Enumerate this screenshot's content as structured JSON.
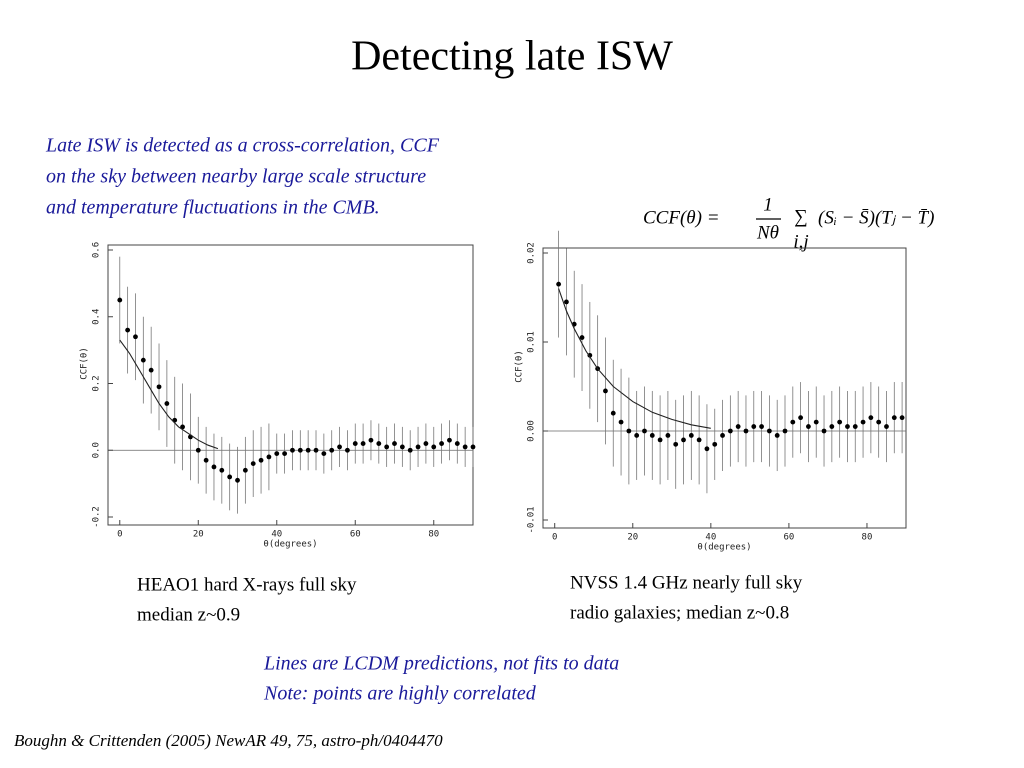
{
  "title": "Detecting late ISW",
  "intro": [
    "Late ISW is detected as a cross-correlation,  CCF",
    "on the sky between nearby large scale structure",
    "and temperature fluctuations in the CMB."
  ],
  "formula": {
    "lhs": "CCF(θ) =",
    "num": "1",
    "den": "Nθ",
    "sum": "∑",
    "sub": "i,j",
    "rhs": "(Sᵢ − S̄)(Tⱼ − T̄)"
  },
  "captions": [
    [
      "HEAO1 hard X-rays full sky",
      "median z~0.9"
    ],
    [
      "NVSS 1.4 GHz  nearly full sky",
      "radio galaxies; median z~0.8"
    ]
  ],
  "notes": [
    "Lines are LCDM predictions, not fits to data",
    "Note: points are highly correlated"
  ],
  "reference": "Boughn & Crittenden (2005) NewAR 49, 75, astro-ph/0404470",
  "chart_data": [
    {
      "type": "scatter",
      "xlabel": "θ(degrees)",
      "ylabel": "CCF(θ)",
      "xlim": [
        -3,
        90
      ],
      "xticks": [
        0,
        20,
        40,
        60,
        80
      ],
      "ylim": [
        -0.2,
        0.6
      ],
      "yticks": [
        -0.2,
        {
          "value": 0,
          "label": "0.0"
        },
        0.2,
        0.4,
        0.6
      ],
      "series": [
        {
          "color": "#000000",
          "x": [
            0,
            2,
            4,
            6,
            8,
            10,
            12,
            14,
            16,
            18,
            20,
            22,
            24,
            26,
            28,
            30,
            32,
            34,
            36,
            38,
            40,
            42,
            44,
            46,
            48,
            50,
            52,
            54,
            56,
            58,
            60,
            62,
            64,
            66,
            68,
            70,
            72,
            74,
            76,
            78,
            80,
            82,
            84,
            86,
            88,
            90
          ],
          "values": [
            0.45,
            0.36,
            0.34,
            0.27,
            0.24,
            0.19,
            0.14,
            0.09,
            0.07,
            0.04,
            0.0,
            -0.03,
            -0.05,
            -0.06,
            -0.08,
            -0.09,
            -0.06,
            -0.04,
            -0.03,
            -0.02,
            -0.01,
            -0.01,
            0.0,
            0.0,
            0.0,
            0.0,
            -0.01,
            0.0,
            0.01,
            0.0,
            0.02,
            0.02,
            0.03,
            0.02,
            0.01,
            0.02,
            0.01,
            0.0,
            0.01,
            0.02,
            0.01,
            0.02,
            0.03,
            0.02,
            0.01,
            0.01
          ],
          "errors": [
            0.13,
            0.13,
            0.13,
            0.13,
            0.13,
            0.13,
            0.13,
            0.13,
            0.13,
            0.13,
            0.1,
            0.1,
            0.1,
            0.1,
            0.1,
            0.1,
            0.1,
            0.1,
            0.1,
            0.1,
            0.06,
            0.06,
            0.06,
            0.06,
            0.06,
            0.06,
            0.06,
            0.06,
            0.06,
            0.06,
            0.06,
            0.06,
            0.06,
            0.06,
            0.06,
            0.06,
            0.06,
            0.06,
            0.06,
            0.06,
            0.06,
            0.06,
            0.06,
            0.06,
            0.06,
            0.06
          ]
        },
        {
          "color": "#222222",
          "line": true,
          "x": [
            0,
            2.5,
            5,
            7.5,
            10,
            12.5,
            15,
            17.5,
            20,
            22.5,
            25
          ],
          "values": [
            0.33,
            0.29,
            0.24,
            0.19,
            0.14,
            0.1,
            0.07,
            0.05,
            0.03,
            0.015,
            0.005
          ]
        }
      ]
    },
    {
      "type": "scatter",
      "xlabel": "θ(degrees)",
      "ylabel": "CCF(θ)",
      "xlim": [
        -3,
        90
      ],
      "xticks": [
        0,
        20,
        40,
        60,
        80
      ],
      "ylim": [
        -0.01,
        0.02
      ],
      "yticks": [
        -0.01,
        {
          "value": 0,
          "label": "0.00"
        },
        0.01,
        0.02
      ],
      "series": [
        {
          "color": "#000000",
          "x": [
            1,
            3,
            5,
            7,
            9,
            11,
            13,
            15,
            17,
            19,
            21,
            23,
            25,
            27,
            29,
            31,
            33,
            35,
            37,
            39,
            41,
            43,
            45,
            47,
            49,
            51,
            53,
            55,
            57,
            59,
            61,
            63,
            65,
            67,
            69,
            71,
            73,
            75,
            77,
            79,
            81,
            83,
            85,
            87,
            89
          ],
          "values": [
            0.0165,
            0.0145,
            0.012,
            0.0105,
            0.0085,
            0.007,
            0.0045,
            0.002,
            0.001,
            0.0,
            -0.0005,
            0.0,
            -0.0005,
            -0.001,
            -0.0005,
            -0.0015,
            -0.001,
            -0.0005,
            -0.001,
            -0.002,
            -0.0015,
            -0.0005,
            0.0,
            0.0005,
            0.0,
            0.0005,
            0.0005,
            0.0,
            -0.0005,
            0.0,
            0.001,
            0.0015,
            0.0005,
            0.001,
            0.0,
            0.0005,
            0.001,
            0.0005,
            0.0005,
            0.001,
            0.0015,
            0.001,
            0.0005,
            0.0015,
            0.0015
          ],
          "errors": [
            0.006,
            0.006,
            0.006,
            0.006,
            0.006,
            0.006,
            0.006,
            0.006,
            0.006,
            0.006,
            0.005,
            0.005,
            0.005,
            0.005,
            0.005,
            0.005,
            0.005,
            0.005,
            0.005,
            0.005,
            0.004,
            0.004,
            0.004,
            0.004,
            0.004,
            0.004,
            0.004,
            0.004,
            0.004,
            0.004,
            0.004,
            0.004,
            0.004,
            0.004,
            0.004,
            0.004,
            0.004,
            0.004,
            0.004,
            0.004,
            0.004,
            0.004,
            0.004,
            0.004,
            0.004
          ]
        },
        {
          "color": "#222222",
          "line": true,
          "x": [
            1,
            3,
            5,
            8,
            11,
            15,
            20,
            25,
            30,
            35,
            40
          ],
          "values": [
            0.016,
            0.0135,
            0.0115,
            0.009,
            0.007,
            0.005,
            0.0033,
            0.0021,
            0.0013,
            0.0007,
            0.0003
          ]
        }
      ]
    }
  ]
}
